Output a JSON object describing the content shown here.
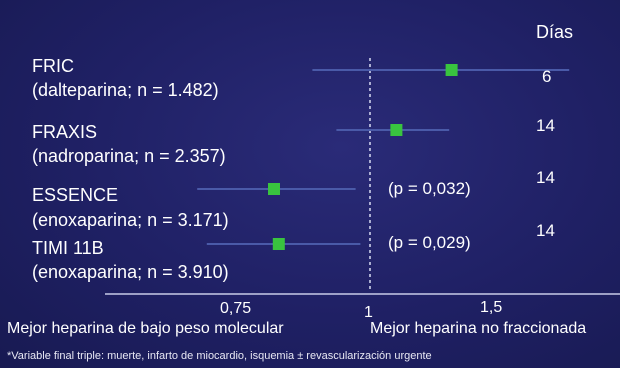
{
  "header": {
    "days": "Días"
  },
  "trials": [
    {
      "name": "FRIC",
      "detail": "(dalteparina; n = 1.482)",
      "days": "6",
      "pvalue": ""
    },
    {
      "name": "FRAXIS",
      "detail": "(nadroparina; n = 2.357)",
      "days": "14",
      "pvalue": ""
    },
    {
      "name": "ESSENCE",
      "detail": "(enoxaparina; n = 3.171)",
      "days": "14",
      "pvalue": "(p = 0,032)"
    },
    {
      "name": "TIMI 11B",
      "detail": "(enoxaparina; n = 3.910)",
      "days": "14",
      "pvalue": "(p = 0,029)"
    }
  ],
  "axis": {
    "ticks": [
      "0,75",
      "1",
      "1,5"
    ],
    "left_caption": "Mejor heparina de bajo peso molecular",
    "right_caption": "Mejor heparina no fraccionada"
  },
  "footnote": "*Variable final triple: muerte, infarto de miocardio, isquemia ± revascularización urgente",
  "colors": {
    "background": "#1e1f5e",
    "point": "#39c43f",
    "ci_line": "#4a5aa8",
    "axis": "#d0d4ee"
  },
  "chart_data": {
    "type": "forest",
    "categories": [
      "FRIC",
      "FRAXIS",
      "ESSENCE",
      "TIMI 11B"
    ],
    "x_ticks": [
      0.75,
      1,
      1.5
    ],
    "xlim": [
      0.5,
      1.95
    ],
    "reference_line": 1,
    "series": [
      {
        "estimates": [
          1.34,
          1.11,
          0.8,
          0.81
        ],
        "ci_low": [
          0.88,
          0.93,
          0.64,
          0.66
        ],
        "ci_high": [
          1.83,
          1.33,
          0.97,
          0.98
        ]
      }
    ]
  }
}
